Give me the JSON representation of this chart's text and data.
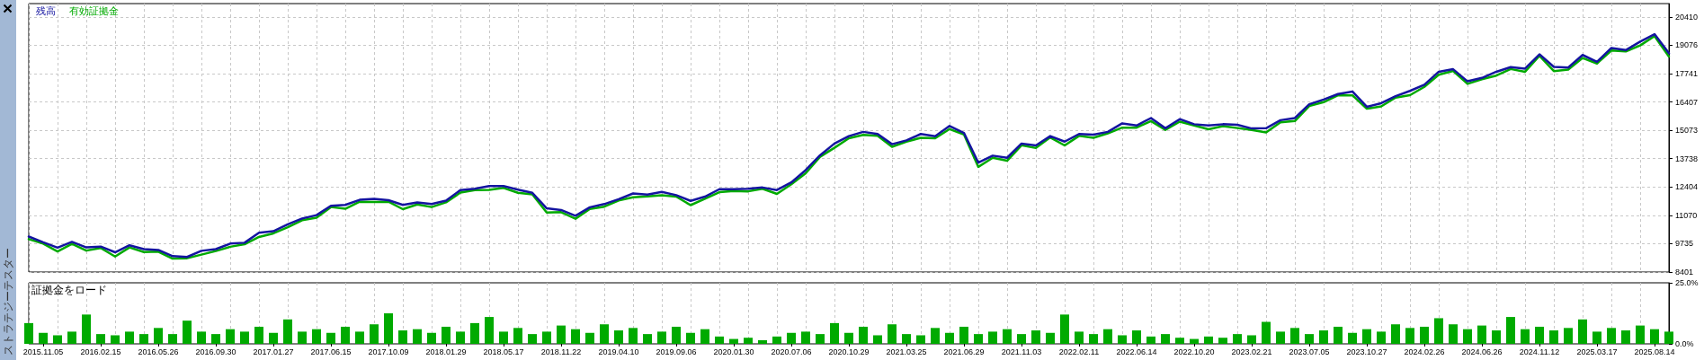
{
  "chart_data": [
    {
      "type": "line",
      "categories": [
        null,
        "2015.11.05",
        null,
        null,
        null,
        "2016.02.15",
        null,
        null,
        null,
        "2016.05.26",
        null,
        null,
        null,
        "2016.09.30",
        null,
        null,
        null,
        "2017.01.27",
        null,
        null,
        null,
        "2017.06.15",
        null,
        null,
        null,
        "2017.10.09",
        null,
        null,
        null,
        "2018.01.29",
        null,
        null,
        null,
        "2018.05.17",
        null,
        null,
        null,
        "2018.11.22",
        null,
        null,
        null,
        "2019.04.10",
        null,
        null,
        null,
        "2019.09.06",
        null,
        null,
        null,
        "2020.01.30",
        null,
        null,
        null,
        "2020.07.06",
        null,
        null,
        null,
        "2020.10.29",
        null,
        null,
        null,
        "2021.03.25",
        null,
        null,
        null,
        "2021.06.29",
        null,
        null,
        null,
        "2021.11.03",
        null,
        null,
        null,
        "2022.02.11",
        null,
        null,
        null,
        "2022.06.14",
        null,
        null,
        null,
        "2022.10.20",
        null,
        null,
        null,
        "2023.02.21",
        null,
        null,
        null,
        "2023.07.05",
        null,
        null,
        null,
        "2023.10.27",
        null,
        null,
        null,
        "2024.02.26",
        null,
        null,
        null,
        "2024.06.26",
        null,
        null,
        null,
        "2024.11.12",
        null,
        null,
        null,
        "2025.03.17",
        null,
        null,
        null,
        "2025.08.14",
        null
      ],
      "series": [
        {
          "name": "残高",
          "color": "#1414a0",
          "values": [
            10070,
            9800,
            9550,
            9820,
            9560,
            9600,
            9330,
            9660,
            9480,
            9440,
            9150,
            9110,
            9400,
            9480,
            9740,
            9780,
            10250,
            10320,
            10650,
            10920,
            11080,
            11520,
            11560,
            11800,
            11850,
            11780,
            11560,
            11680,
            11600,
            11760,
            12260,
            12320,
            12450,
            12450,
            12280,
            12130,
            11400,
            11320,
            11050,
            11450,
            11600,
            11830,
            12100,
            12050,
            12170,
            12020,
            11750,
            11950,
            12300,
            12300,
            12320,
            12380,
            12260,
            12620,
            13200,
            13900,
            14450,
            14800,
            15000,
            14900,
            14420,
            14600,
            14900,
            14790,
            15280,
            14950,
            13550,
            13880,
            13780,
            14450,
            14360,
            14800,
            14540,
            14900,
            14870,
            15000,
            15400,
            15300,
            15650,
            15170,
            15600,
            15360,
            15300,
            15360,
            15330,
            15160,
            15170,
            15550,
            15650,
            16300,
            16520,
            16780,
            16900,
            16180,
            16350,
            16680,
            16930,
            17220,
            17830,
            17950,
            17380,
            17540,
            17830,
            18050,
            17980,
            18650,
            18060,
            18030,
            18620,
            18300,
            18950,
            18850,
            19250,
            19600,
            18700
          ]
        },
        {
          "name": "有効証拠金",
          "color": "#00aa00",
          "values": [
            9950,
            9740,
            9370,
            9730,
            9410,
            9530,
            9130,
            9560,
            9340,
            9360,
            9030,
            9050,
            9220,
            9390,
            9590,
            9710,
            10050,
            10220,
            10510,
            10840,
            10960,
            11460,
            11380,
            11710,
            11700,
            11710,
            11360,
            11580,
            11460,
            11680,
            12140,
            12260,
            12270,
            12360,
            12130,
            12060,
            11200,
            11220,
            10910,
            11370,
            11480,
            11770,
            11920,
            11960,
            12020,
            11950,
            11550,
            11850,
            12160,
            12220,
            12200,
            12320,
            12080,
            12530,
            13050,
            13830,
            14250,
            14700,
            14860,
            14820,
            14300,
            14540,
            14720,
            14700,
            15130,
            14880,
            13350,
            13780,
            13640,
            14370,
            14240,
            14740,
            14360,
            14810,
            14720,
            14930,
            15200,
            15200,
            15510,
            15090,
            15480,
            15300,
            15120,
            15270,
            15180,
            15090,
            14970,
            15450,
            15510,
            16220,
            16400,
            16720,
            16720,
            16090,
            16200,
            16610,
            16730,
            17120,
            17690,
            17870,
            17260,
            17480,
            17650,
            17960,
            17830,
            18580,
            17860,
            17930,
            18480,
            18220,
            18830,
            18790,
            19070,
            19510,
            18550
          ]
        }
      ],
      "ylim": [
        8401,
        21040
      ],
      "yticks": [
        8401,
        9735,
        11070,
        12404,
        13738,
        15073,
        16407,
        17741,
        19076,
        20410
      ],
      "grid": true,
      "legend": "top left",
      "tick_labels": "y"
    },
    {
      "type": "bar",
      "title": "証拠金をロード",
      "categories": [
        null,
        "2015.11.05",
        null,
        null,
        null,
        "2016.02.15",
        null,
        null,
        null,
        "2016.05.26",
        null,
        null,
        null,
        "2016.09.30",
        null,
        null,
        null,
        "2017.01.27",
        null,
        null,
        null,
        "2017.06.15",
        null,
        null,
        null,
        "2017.10.09",
        null,
        null,
        null,
        "2018.01.29",
        null,
        null,
        null,
        "2018.05.17",
        null,
        null,
        null,
        "2018.11.22",
        null,
        null,
        null,
        "2019.04.10",
        null,
        null,
        null,
        "2019.09.06",
        null,
        null,
        null,
        "2020.01.30",
        null,
        null,
        null,
        "2020.07.06",
        null,
        null,
        null,
        "2020.10.29",
        null,
        null,
        null,
        "2021.03.25",
        null,
        null,
        null,
        "2021.06.29",
        null,
        null,
        null,
        "2021.11.03",
        null,
        null,
        null,
        "2022.02.11",
        null,
        null,
        null,
        "2022.06.14",
        null,
        null,
        null,
        "2022.10.20",
        null,
        null,
        null,
        "2023.02.21",
        null,
        null,
        null,
        "2023.07.05",
        null,
        null,
        null,
        "2023.10.27",
        null,
        null,
        null,
        "2024.02.26",
        null,
        null,
        null,
        "2024.06.26",
        null,
        null,
        null,
        "2024.11.12",
        null,
        null,
        null,
        "2025.03.17",
        null,
        null,
        null,
        "2025.08.14",
        null
      ],
      "values": [
        8.5,
        4.5,
        3.5,
        5,
        12,
        4,
        3.5,
        5,
        4,
        6.5,
        4,
        9.5,
        5,
        4,
        6,
        5,
        7,
        4.5,
        10,
        5,
        6,
        4.5,
        7,
        5,
        8,
        12.5,
        5.5,
        6,
        4.5,
        7,
        5,
        8.5,
        11,
        5,
        6.5,
        4,
        5,
        7.5,
        6,
        4.5,
        8,
        5.5,
        6.5,
        4,
        5,
        7,
        4.5,
        6,
        3,
        2,
        2.5,
        1.5,
        3,
        4.5,
        5,
        4,
        8.5,
        4.5,
        7,
        3.5,
        8,
        4,
        3.5,
        6.5,
        4.5,
        7,
        4,
        5,
        6,
        4,
        5.5,
        4.5,
        12,
        5,
        4,
        6,
        3.5,
        5.5,
        3,
        4,
        2.5,
        2,
        3,
        2.5,
        4,
        3.5,
        9,
        5,
        6.5,
        4,
        5.5,
        7,
        4.5,
        6,
        5,
        8,
        6.5,
        7,
        10.5,
        8,
        6,
        7.5,
        5.5,
        11,
        6,
        7,
        5.5,
        6.5,
        10,
        5,
        6.5,
        5.5,
        7.5,
        6,
        5
      ],
      "color": "#00aa00",
      "ylim": [
        0,
        25
      ],
      "yticks": [
        {
          "value": 0,
          "label": "0.0%"
        },
        {
          "value": 25,
          "label": "25.0%"
        }
      ],
      "grid": "x",
      "annotations": [
        "ストラテジーテスター"
      ]
    }
  ]
}
